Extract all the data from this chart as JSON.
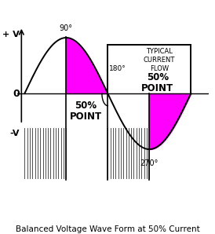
{
  "title": "Balanced Voltage Wave Form at 50% Current",
  "title_fontsize": 7.5,
  "bg_color": "#ffffff",
  "wave_color": "#000000",
  "fill_color": "#ff00ff",
  "text_color": "#000000",
  "plus_v_label": "+ V",
  "minus_v_label": "-V",
  "zero_label": "0",
  "label_90": "90°",
  "label_180": "180°",
  "label_270": "270°",
  "amplitude": 1.0,
  "figsize": [
    2.74,
    2.98
  ],
  "dpi": 100,
  "xlim": [
    -0.28,
    6.95
  ],
  "ylim": [
    -2.1,
    1.55
  ]
}
